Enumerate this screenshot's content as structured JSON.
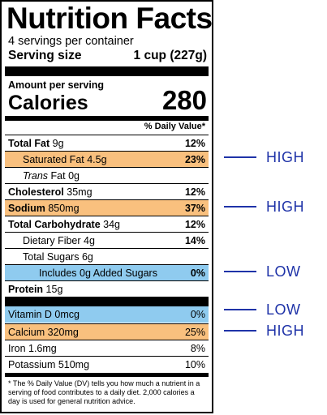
{
  "label": {
    "title": "Nutrition Facts",
    "servings_per_container": "4 servings per container",
    "serving_size_label": "Serving size",
    "serving_size_value": "1 cup (227g)",
    "amount_per_serving": "Amount per serving",
    "calories_label": "Calories",
    "calories_value": "280",
    "dv_header": "% Daily Value*",
    "nutrients": {
      "total_fat": {
        "name": "Total Fat",
        "amount": "9g",
        "dv": "12%"
      },
      "saturated_fat": {
        "name": "Saturated Fat",
        "amount": "4.5g",
        "dv": "23%"
      },
      "trans_fat": {
        "name_italic": "Trans",
        "name_rest": "Fat",
        "amount": "0g"
      },
      "cholesterol": {
        "name": "Cholesterol",
        "amount": "35mg",
        "dv": "12%"
      },
      "sodium": {
        "name": "Sodium",
        "amount": "850mg",
        "dv": "37%"
      },
      "total_carbohydrate": {
        "name": "Total Carbohydrate",
        "amount": "34g",
        "dv": "12%"
      },
      "dietary_fiber": {
        "name": "Dietary Fiber",
        "amount": "4g",
        "dv": "14%"
      },
      "total_sugars": {
        "name": "Total Sugars",
        "amount": "6g"
      },
      "added_sugars": {
        "name": "Includes 0g Added Sugars",
        "dv": "0%"
      },
      "protein": {
        "name": "Protein",
        "amount": "15g"
      }
    },
    "vitamins": {
      "vitamin_d": {
        "name": "Vitamin D 0mcg",
        "dv": "0%"
      },
      "calcium": {
        "name": "Calcium 320mg",
        "dv": "25%"
      },
      "iron": {
        "name": "Iron 1.6mg",
        "dv": "8%"
      },
      "potassium": {
        "name": "Potassium 510mg",
        "dv": "10%"
      }
    },
    "footnote": "* The % Daily Value (DV) tells you how much a nutrient in a serving of food contributes to a daily diet. 2,000 calories a day is used for general nutrition advice."
  },
  "annotations": {
    "saturated_fat": "HIGH",
    "sodium": "HIGH",
    "added_sugars": "LOW",
    "vitamin_d": "LOW",
    "calcium": "HIGH"
  },
  "colors": {
    "high_highlight": "#f9c07e",
    "low_highlight": "#8fcbef",
    "annotation_text": "#1f33a8"
  }
}
